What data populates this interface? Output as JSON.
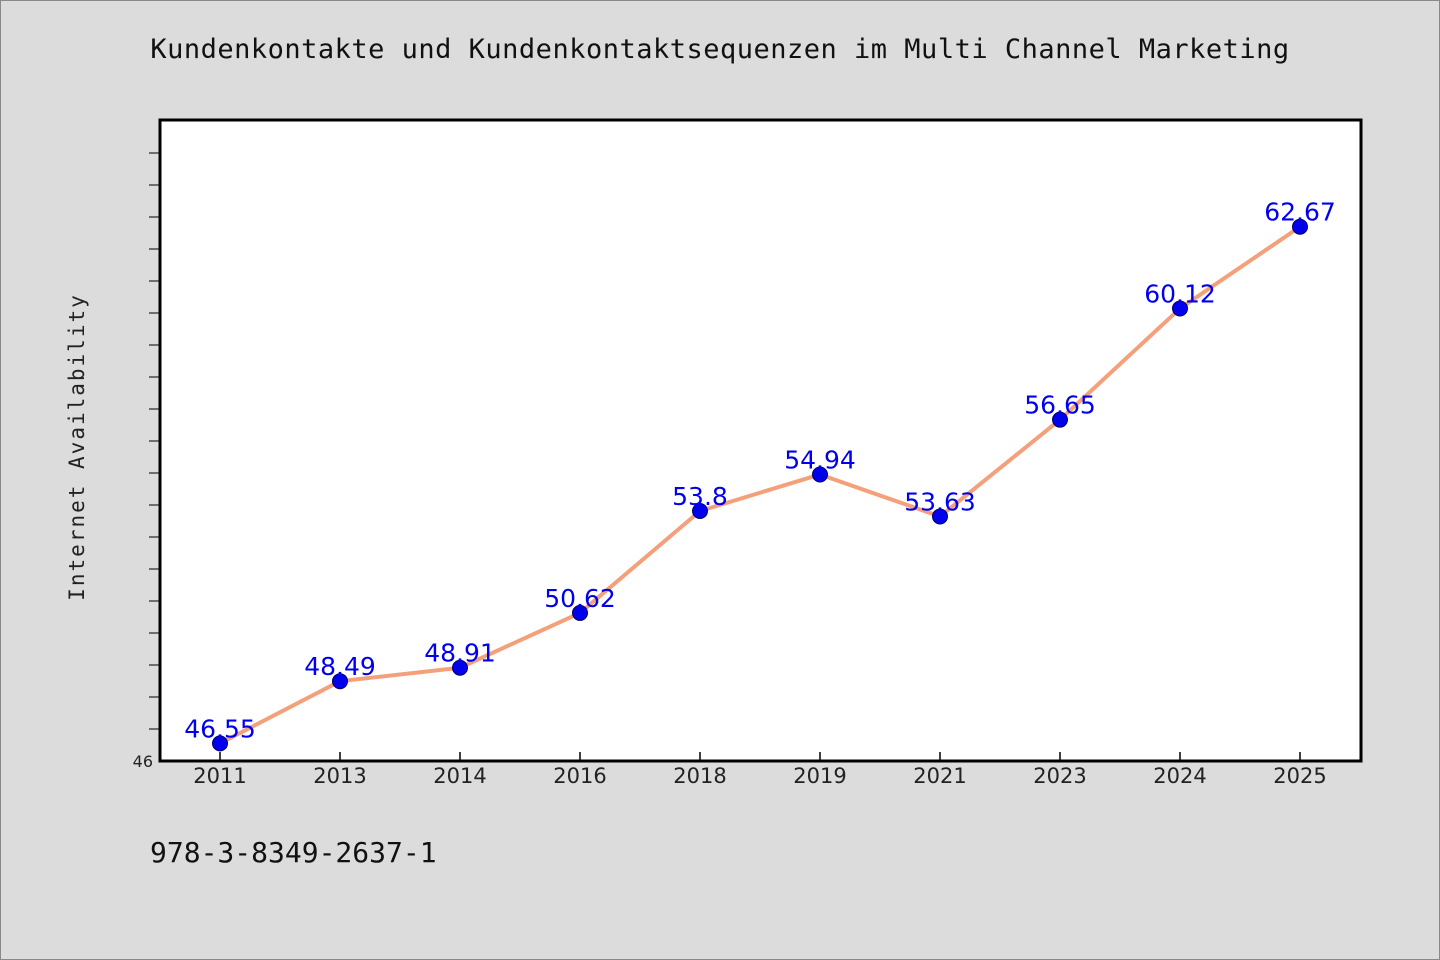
{
  "chart_data": {
    "type": "line",
    "title": "Kundenkontakte und Kundenkontaktsequenzen im Multi Channel Marketing",
    "xlabel": "",
    "ylabel": "Internet Availability",
    "categories": [
      "2011",
      "2013",
      "2014",
      "2016",
      "2018",
      "2019",
      "2021",
      "2023",
      "2024",
      "2025"
    ],
    "series": [
      {
        "values": [
          46.55,
          48.49,
          48.91,
          50.62,
          53.8,
          54.94,
          53.63,
          56.65,
          60.12,
          62.67
        ],
        "labels": [
          "46.55",
          "48.49",
          "48.91",
          "50.62",
          "53.8",
          "54.94",
          "53.63",
          "56.65",
          "60.12",
          "62.67"
        ]
      }
    ],
    "ylim": [
      46,
      66
    ],
    "y_tick_label": "46",
    "grid": false,
    "line_color": "#f4a07a",
    "marker_color": "#0000ee",
    "label_color": "#0000ee"
  },
  "footer": {
    "isbn": "978-3-8349-2637-1"
  }
}
